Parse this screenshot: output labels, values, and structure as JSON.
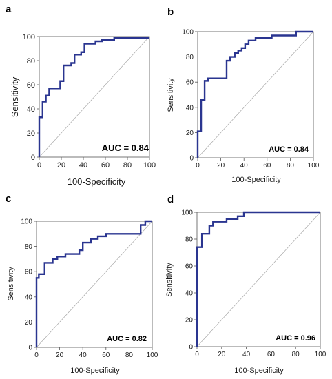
{
  "chart_data": [
    {
      "type": "line",
      "panel": "a",
      "xlabel": "100-Specificity",
      "ylabel": "Sensitivity",
      "xlim": [
        0,
        100
      ],
      "ylim": [
        0,
        100
      ],
      "ticks": [
        0,
        20,
        40,
        60,
        80,
        100
      ],
      "annotation": "AUC = 0.84",
      "reference_line": true,
      "color": "#2a3590",
      "points": [
        [
          0,
          0
        ],
        [
          0,
          33
        ],
        [
          3,
          33
        ],
        [
          3,
          46
        ],
        [
          6,
          46
        ],
        [
          6,
          51
        ],
        [
          9,
          51
        ],
        [
          9,
          57
        ],
        [
          19,
          57
        ],
        [
          19,
          63
        ],
        [
          22,
          63
        ],
        [
          22,
          76
        ],
        [
          29,
          76
        ],
        [
          29,
          78
        ],
        [
          32,
          78
        ],
        [
          32,
          85
        ],
        [
          38,
          85
        ],
        [
          38,
          87
        ],
        [
          41,
          87
        ],
        [
          41,
          94
        ],
        [
          51,
          94
        ],
        [
          51,
          96
        ],
        [
          57,
          96
        ],
        [
          57,
          97
        ],
        [
          68,
          97
        ],
        [
          68,
          99
        ],
        [
          100,
          99
        ]
      ]
    },
    {
      "type": "line",
      "panel": "b",
      "xlabel": "100-Specificity",
      "ylabel": "Sensitivity",
      "xlim": [
        0,
        100
      ],
      "ylim": [
        0,
        100
      ],
      "ticks": [
        0,
        20,
        40,
        60,
        80,
        100
      ],
      "annotation": "AUC = 0.84",
      "reference_line": true,
      "color": "#2a3590",
      "points": [
        [
          0,
          0
        ],
        [
          0,
          21
        ],
        [
          3,
          21
        ],
        [
          3,
          46
        ],
        [
          6,
          46
        ],
        [
          6,
          61
        ],
        [
          9,
          61
        ],
        [
          9,
          63
        ],
        [
          25,
          63
        ],
        [
          25,
          77
        ],
        [
          28,
          77
        ],
        [
          28,
          80
        ],
        [
          32,
          80
        ],
        [
          32,
          83
        ],
        [
          35,
          83
        ],
        [
          35,
          85
        ],
        [
          38,
          85
        ],
        [
          38,
          87
        ],
        [
          41,
          87
        ],
        [
          41,
          90
        ],
        [
          44,
          90
        ],
        [
          44,
          93
        ],
        [
          50,
          93
        ],
        [
          50,
          95
        ],
        [
          64,
          95
        ],
        [
          64,
          97
        ],
        [
          85,
          97
        ],
        [
          85,
          100
        ],
        [
          100,
          100
        ]
      ]
    },
    {
      "type": "line",
      "panel": "c",
      "xlabel": "100-Specificity",
      "ylabel": "Sensitivity",
      "xlim": [
        0,
        100
      ],
      "ylim": [
        0,
        100
      ],
      "ticks": [
        0,
        20,
        40,
        60,
        80,
        100
      ],
      "annotation": "AUC = 0.82",
      "reference_line": true,
      "color": "#2a3590",
      "points": [
        [
          0,
          0
        ],
        [
          0,
          55
        ],
        [
          2,
          55
        ],
        [
          2,
          58
        ],
        [
          7,
          58
        ],
        [
          7,
          67
        ],
        [
          14,
          67
        ],
        [
          14,
          70
        ],
        [
          18,
          70
        ],
        [
          18,
          72
        ],
        [
          25,
          72
        ],
        [
          25,
          74
        ],
        [
          37,
          74
        ],
        [
          37,
          77
        ],
        [
          40,
          77
        ],
        [
          40,
          83
        ],
        [
          47,
          83
        ],
        [
          47,
          86
        ],
        [
          53,
          86
        ],
        [
          53,
          88
        ],
        [
          60,
          88
        ],
        [
          60,
          90
        ],
        [
          90,
          90
        ],
        [
          90,
          97
        ],
        [
          94,
          97
        ],
        [
          94,
          100
        ],
        [
          100,
          100
        ]
      ]
    },
    {
      "type": "line",
      "panel": "d",
      "xlabel": "100-Specificity",
      "ylabel": "Sensitivity",
      "xlim": [
        0,
        100
      ],
      "ylim": [
        0,
        100
      ],
      "ticks": [
        0,
        20,
        40,
        60,
        80,
        100
      ],
      "annotation": "AUC = 0.96",
      "reference_line": true,
      "color": "#2a3590",
      "points": [
        [
          0,
          0
        ],
        [
          0,
          74
        ],
        [
          4,
          74
        ],
        [
          4,
          84
        ],
        [
          10,
          84
        ],
        [
          10,
          90
        ],
        [
          13,
          90
        ],
        [
          13,
          93
        ],
        [
          24,
          93
        ],
        [
          24,
          95
        ],
        [
          33,
          95
        ],
        [
          33,
          97
        ],
        [
          38,
          97
        ],
        [
          38,
          100
        ],
        [
          100,
          100
        ]
      ]
    }
  ]
}
